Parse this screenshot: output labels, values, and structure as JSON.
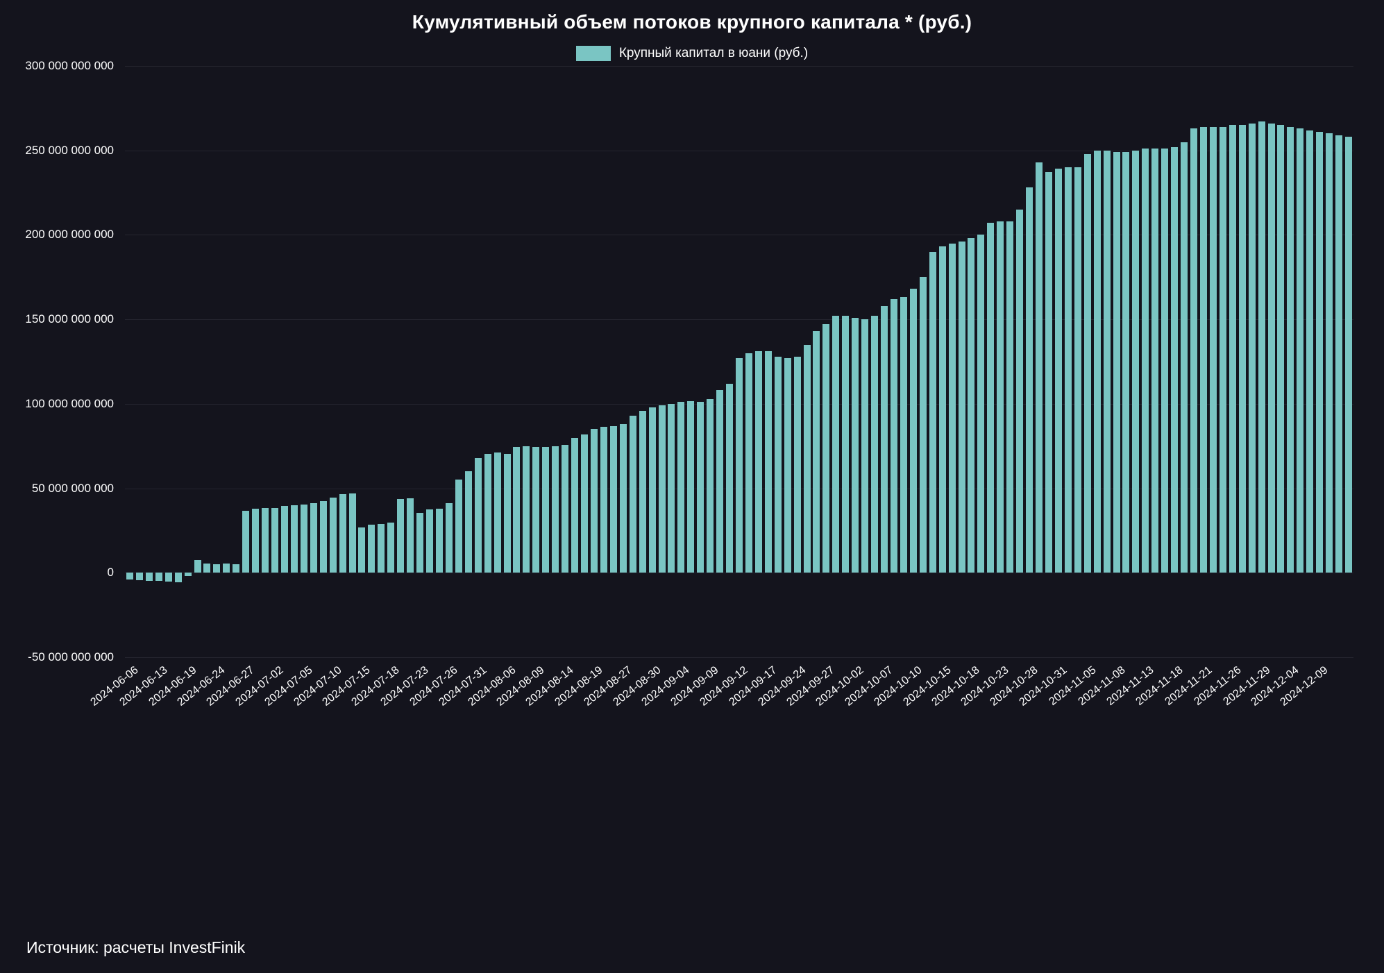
{
  "title": "Кумулятивный объем потоков крупного капитала * (руб.)",
  "legend": {
    "label": "Крупный капитал в юани (руб.)",
    "color": "#7ac5c3"
  },
  "source": "Источник: расчеты InvestFinik",
  "colors": {
    "background": "#14141d",
    "bar": "#7ac5c3",
    "grid": "#25252f",
    "text": "#ffffff"
  },
  "chart_data": {
    "type": "bar",
    "title": "Кумулятивный объем потоков крупного капитала * (руб.)",
    "series_name": "Крупный капитал в юани (руб.)",
    "ylabel": "",
    "xlabel": "",
    "grid": "horizontal",
    "legend_position": "top-center",
    "unit_multiplier": 1000000000,
    "ylim_billions": [
      -50,
      300
    ],
    "y_ticks": [
      {
        "v": 300,
        "label": "300 000 000 000"
      },
      {
        "v": 250,
        "label": "250 000 000 000"
      },
      {
        "v": 200,
        "label": "200 000 000 000"
      },
      {
        "v": 150,
        "label": "150 000 000 000"
      },
      {
        "v": 100,
        "label": "100 000 000 000"
      },
      {
        "v": 50,
        "label": "50 000 000 000"
      },
      {
        "v": 0,
        "label": "0"
      },
      {
        "v": -50,
        "label": "-50 000 000 000"
      }
    ],
    "tick_every": 3,
    "x_tick_labels": [
      "2024-06-06",
      "2024-06-13",
      "2024-06-19",
      "2024-06-24",
      "2024-06-27",
      "2024-07-02",
      "2024-07-05",
      "2024-07-10",
      "2024-07-15",
      "2024-07-18",
      "2024-07-23",
      "2024-07-26",
      "2024-07-31",
      "2024-08-06",
      "2024-08-09",
      "2024-08-14",
      "2024-08-19",
      "2024-08-27",
      "2024-08-30",
      "2024-09-04",
      "2024-09-09",
      "2024-09-12",
      "2024-09-17",
      "2024-09-24",
      "2024-09-27",
      "2024-10-02",
      "2024-10-07",
      "2024-10-10",
      "2024-10-15",
      "2024-10-18",
      "2024-10-23",
      "2024-10-28",
      "2024-10-31",
      "2024-11-05",
      "2024-11-08",
      "2024-11-13",
      "2024-11-18",
      "2024-11-21",
      "2024-11-26",
      "2024-11-29",
      "2024-12-04",
      "2024-12-09"
    ],
    "values_billions": [
      -4,
      -4.5,
      -5,
      -5,
      -5.2,
      -5.5,
      -2,
      7.5,
      5.5,
      5,
      5.5,
      5.2,
      36.5,
      38,
      38.2,
      38.5,
      39.5,
      40,
      40.5,
      41,
      42.5,
      44.5,
      46.5,
      47,
      27,
      28.5,
      29,
      29.5,
      43.5,
      44,
      35.5,
      37.5,
      38,
      41,
      55,
      60,
      68,
      70.5,
      71,
      70.5,
      74.5,
      75,
      74.5,
      74.5,
      75,
      75.5,
      80,
      82,
      85,
      86.5,
      87,
      88,
      93,
      96,
      98,
      99,
      100,
      101,
      101.5,
      101,
      103,
      108,
      112,
      127,
      130,
      131,
      131,
      128,
      127,
      128,
      135,
      143,
      147,
      152,
      152,
      151,
      150,
      152,
      158,
      162,
      163,
      168,
      175,
      190,
      193,
      195,
      196,
      198,
      200,
      207,
      208,
      208,
      215,
      228,
      243,
      237,
      239,
      240,
      240,
      248,
      250,
      250,
      249,
      249,
      250,
      251,
      251,
      251,
      252,
      255,
      263,
      264,
      264,
      264,
      265,
      265,
      266,
      267,
      266,
      265,
      264,
      263,
      262,
      261,
      260,
      259,
      258
    ]
  }
}
